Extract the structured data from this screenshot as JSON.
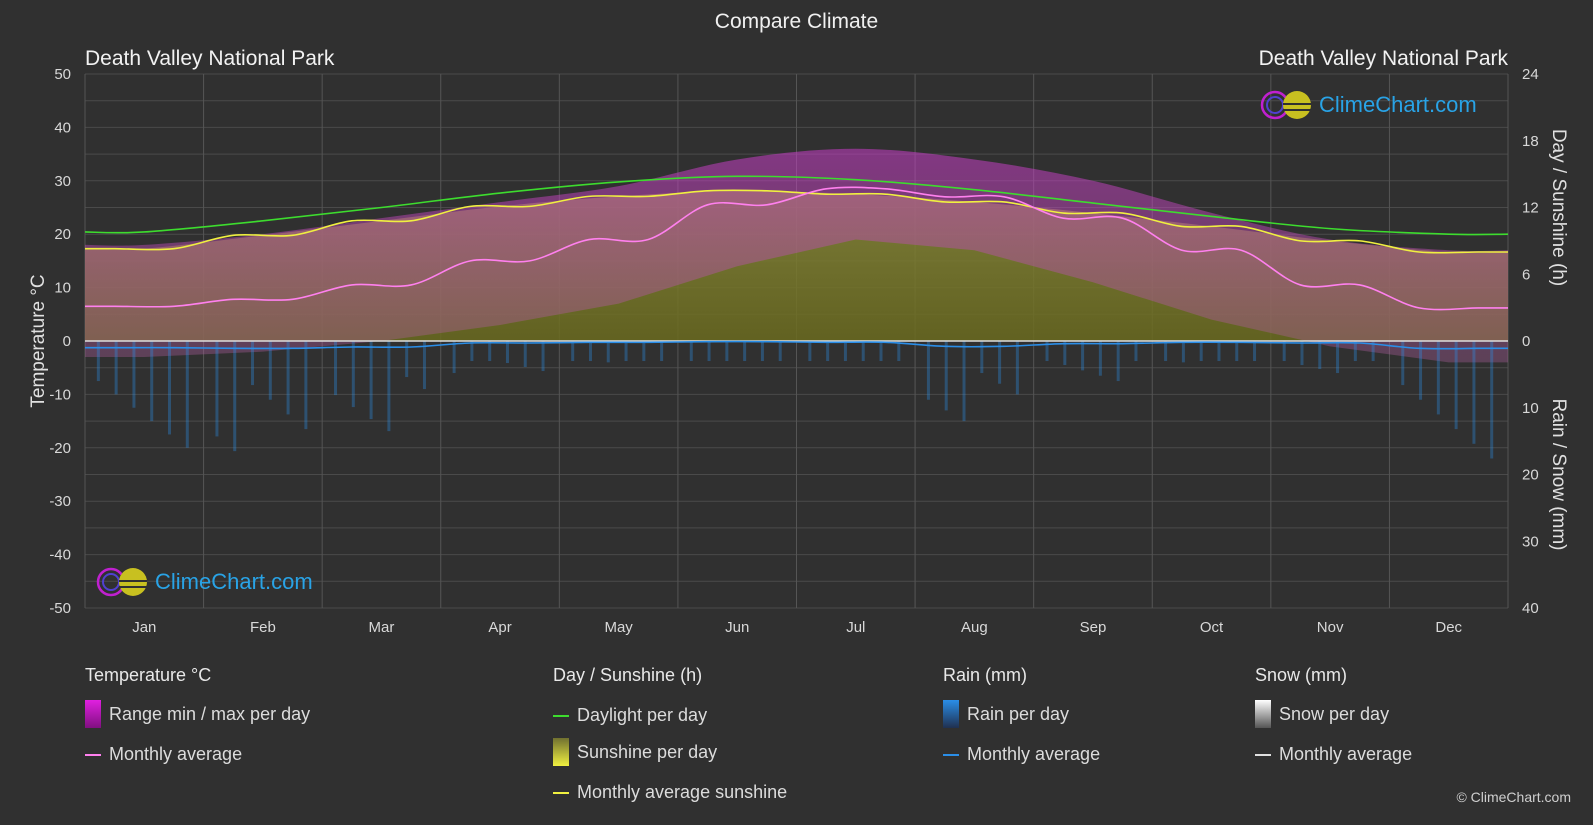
{
  "title": "Compare Climate",
  "location_left": "Death Valley National Park",
  "location_right": "Death Valley National Park",
  "logo_text": "ClimeChart.com",
  "copyright": "© ClimeChart.com",
  "legend": {
    "temperature": {
      "heading": "Temperature °C",
      "range": "Range min / max per day",
      "avg": "Monthly average"
    },
    "sunshine": {
      "heading": "Day / Sunshine (h)",
      "daylight": "Daylight per day",
      "sunshine": "Sunshine per day",
      "avg": "Monthly average sunshine"
    },
    "rain": {
      "heading": "Rain (mm)",
      "per_day": "Rain per day",
      "avg": "Monthly average"
    },
    "snow": {
      "heading": "Snow (mm)",
      "per_day": "Snow per day",
      "avg": "Monthly average"
    }
  },
  "colors": {
    "background": "#303030",
    "temp_range": "#d414d4",
    "temp_avg": "#ff80ee",
    "daylight": "#3ddc2e",
    "sunshine_fill": "#9a9a2a",
    "sunshine_avg": "#f0f040",
    "rain": "#2a8ee8",
    "snow": "#cccccc"
  },
  "chart_data": {
    "type": "area",
    "months": [
      "Jan",
      "Feb",
      "Mar",
      "Apr",
      "May",
      "Jun",
      "Jul",
      "Aug",
      "Sep",
      "Oct",
      "Nov",
      "Dec"
    ],
    "y_left": {
      "label": "Temperature °C",
      "range": [
        -50,
        50
      ],
      "ticks": [
        "50",
        "40",
        "30",
        "20",
        "10",
        "0",
        "-10",
        "-20",
        "-30",
        "-40",
        "-50"
      ]
    },
    "y_right_top": {
      "label": "Day / Sunshine (h)",
      "range": [
        0,
        24
      ],
      "ticks": [
        "24",
        "18",
        "12",
        "6",
        "0"
      ]
    },
    "y_right_bottom": {
      "label": "Rain / Snow (mm)",
      "range": [
        0,
        40
      ],
      "ticks": [
        "0",
        "10",
        "20",
        "30",
        "40"
      ]
    },
    "temp_avg": [
      6.5,
      7.8,
      10.5,
      15,
      19,
      25.5,
      28.5,
      27,
      23,
      17,
      10.5,
      6.2
    ],
    "temp_max_range": [
      18,
      20,
      23,
      26,
      29,
      34,
      36,
      34,
      30,
      24,
      19,
      17
    ],
    "temp_min_range": [
      -3,
      -2,
      0,
      3,
      7,
      14,
      19,
      17,
      11,
      4,
      -1,
      -4
    ],
    "daylight_hours": [
      9.8,
      10.8,
      12,
      13.3,
      14.3,
      14.8,
      14.5,
      13.6,
      12.4,
      11.2,
      10.1,
      9.6
    ],
    "sunshine_hours": [
      8.3,
      9.5,
      10.8,
      12.1,
      13.0,
      13.5,
      13.2,
      12.5,
      11.5,
      10.3,
      9.0,
      8.0
    ],
    "rain_monthly_avg_mm": [
      1.0,
      1.1,
      0.9,
      0.3,
      0.2,
      0.1,
      0.2,
      0.8,
      0.4,
      0.2,
      0.3,
      1.1
    ],
    "snow_monthly_avg_mm": [
      0,
      0,
      0,
      0,
      0,
      0,
      0,
      0,
      0,
      0,
      0,
      0
    ],
    "grid": true
  }
}
